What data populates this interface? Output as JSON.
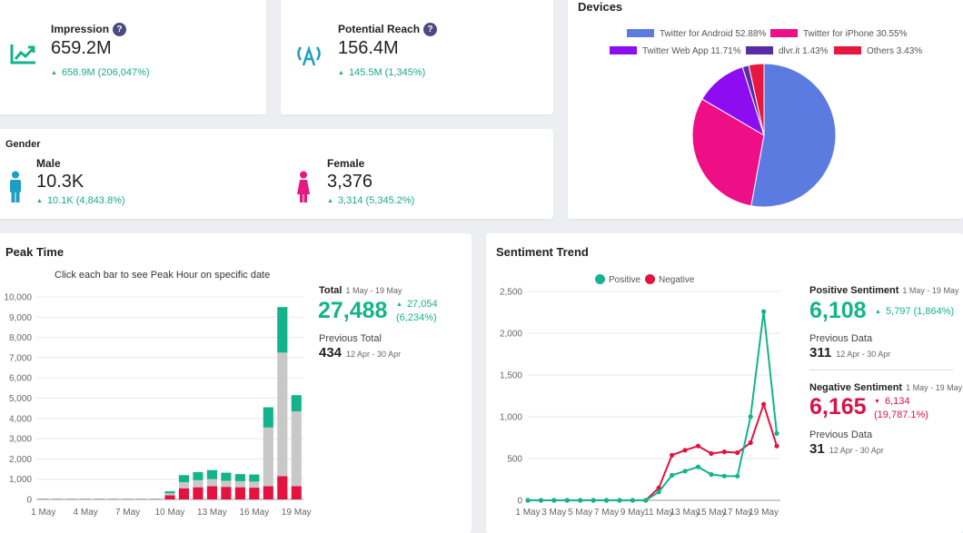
{
  "impression": {
    "label": "Impression",
    "value": "659.2M",
    "change": "658.9M (206,047%)",
    "icon": "trend-up-icon"
  },
  "reach": {
    "label": "Potential Reach",
    "value": "156.4M",
    "change": "145.5M (1,345%)",
    "icon": "broadcast-icon"
  },
  "help_glyph": "?",
  "arrow_up": "▲",
  "arrow_down": "▼",
  "gender": {
    "title": "Gender",
    "male": {
      "label": "Male",
      "value": "10.3K",
      "change": "10.1K (4,843.8%)",
      "color": "#1c9fc2"
    },
    "female": {
      "label": "Female",
      "value": "3,376",
      "change": "3,314 (5,345.2%)",
      "color": "#e6197f"
    }
  },
  "devices": {
    "title": "Devices",
    "chart_data": {
      "type": "pie",
      "slices": [
        {
          "label": "Twitter for Android 52.88%",
          "value": 52.88,
          "color": "#5b7be0"
        },
        {
          "label": "Twitter for iPhone 30.55%",
          "value": 30.55,
          "color": "#ee0f86"
        },
        {
          "label": "Twitter Web App 11.71%",
          "value": 11.71,
          "color": "#8c0ef0"
        },
        {
          "label": "dlvr.it 1.43%",
          "value": 1.43,
          "color": "#5a2aa8"
        },
        {
          "label": "Others 3.43%",
          "value": 3.43,
          "color": "#e8173f"
        }
      ]
    }
  },
  "peak": {
    "title": "Peak Time",
    "subtitle": "Click each bar to see Peak Hour on specific date",
    "chart_data": {
      "type": "bar",
      "stacked": true,
      "ylim": [
        0,
        10000
      ],
      "yticks": [
        "0",
        "1,000",
        "2,000",
        "3,000",
        "4,000",
        "5,000",
        "6,000",
        "7,000",
        "8,000",
        "9,000",
        "10,000"
      ],
      "xticks": [
        "1 May",
        "4 May",
        "7 May",
        "10 May",
        "13 May",
        "16 May",
        "19 May"
      ],
      "categories": [
        "1 May",
        "2 May",
        "3 May",
        "4 May",
        "5 May",
        "6 May",
        "7 May",
        "8 May",
        "9 May",
        "10 May",
        "11 May",
        "12 May",
        "13 May",
        "14 May",
        "15 May",
        "16 May",
        "17 May",
        "18 May",
        "19 May"
      ],
      "series": [
        {
          "color": "#e5123f",
          "values": [
            0,
            0,
            0,
            0,
            0,
            0,
            0,
            0,
            0,
            200,
            550,
            600,
            650,
            620,
            600,
            580,
            650,
            1150,
            650
          ]
        },
        {
          "color": "#c8c8c8",
          "values": [
            0,
            0,
            0,
            0,
            0,
            0,
            0,
            0,
            0,
            100,
            300,
            350,
            350,
            300,
            300,
            300,
            2900,
            6100,
            3700
          ]
        },
        {
          "color": "#13b48b",
          "values": [
            0,
            0,
            0,
            0,
            0,
            0,
            0,
            0,
            0,
            100,
            350,
            400,
            450,
            400,
            350,
            350,
            1000,
            2250,
            800
          ]
        }
      ]
    },
    "total_label": "Total",
    "range": "1 May - 19 May",
    "total": "27,488",
    "total_change_1": "27,054",
    "total_change_2": "(6,234%)",
    "prev_label": "Previous Total",
    "prev_value": "434",
    "prev_range": "12 Apr - 30 Apr"
  },
  "sentiment": {
    "title": "Sentiment Trend",
    "legend_pos": "Positive",
    "legend_neg": "Negative",
    "chart_data": {
      "type": "line",
      "ylim": [
        0,
        2500
      ],
      "yticks": [
        "0",
        "500",
        "1,000",
        "1,500",
        "2,000",
        "2,500"
      ],
      "xticks": [
        "1 May",
        "3 May",
        "5 May",
        "7 May",
        "9 May",
        "11 May",
        "13 May",
        "15 May",
        "17 May",
        "19 May"
      ],
      "series": [
        {
          "name": "Positive",
          "color": "#13b48b",
          "values": [
            0,
            0,
            0,
            0,
            0,
            0,
            0,
            0,
            0,
            0,
            100,
            300,
            350,
            400,
            310,
            290,
            290,
            1000,
            2260,
            800
          ]
        },
        {
          "name": "Negative",
          "color": "#e5123f",
          "values": [
            0,
            0,
            0,
            0,
            0,
            0,
            0,
            0,
            0,
            0,
            150,
            540,
            600,
            650,
            560,
            580,
            570,
            690,
            1150,
            650
          ]
        }
      ]
    },
    "pos_label": "Positive Sentiment",
    "pos_range": "1 May - 19 May",
    "pos_value": "6,108",
    "pos_change": "5,797 (1,864%)",
    "pos_prev_label": "Previous Data",
    "pos_prev_value": "311",
    "pos_prev_range": "12 Apr - 30 Apr",
    "neg_label": "Negative Sentiment",
    "neg_range": "1 May - 19 May",
    "neg_value": "6,165",
    "neg_change_1": "6,134",
    "neg_change_2": "(19,787.1%)",
    "neg_prev_label": "Previous Data",
    "neg_prev_value": "31",
    "neg_prev_range": "12 Apr - 30 Apr"
  }
}
